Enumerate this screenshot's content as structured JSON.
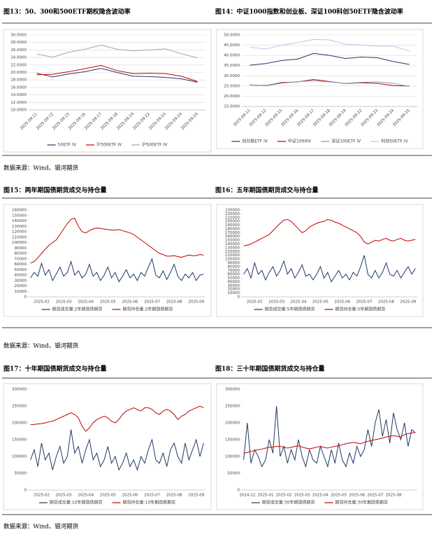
{
  "sources": [
    "数据来源：Wind、银河期货",
    "数据来源：Wind、银河期货",
    "数据来源：Wind、银河期货"
  ],
  "chart_data": [
    {
      "type": "line",
      "title": "图13：50、300和500ETF期权隐含波动率",
      "categories": [
        "2025-09-11",
        "2025-09-12",
        "2025-09-15",
        "2025-09-16",
        "2025-09-17",
        "2025-09-18",
        "2025-09-19",
        "2025-09-22",
        "2025-09-23",
        "2025-09-24",
        "2025-09-25"
      ],
      "x_tick_rotation": -45,
      "grid": true,
      "ylim": [
        10,
        30
      ],
      "yticks": [
        {
          "value": 10,
          "label": "10.0000"
        },
        {
          "value": 12,
          "label": "12.0000"
        },
        {
          "value": 14,
          "label": "14.0000"
        },
        {
          "value": 16,
          "label": "16.0000"
        },
        {
          "value": 18,
          "label": "18.0000"
        },
        {
          "value": 20,
          "label": "20.0000"
        },
        {
          "value": 22,
          "label": "22.0000"
        },
        {
          "value": 24,
          "label": "24.0000"
        },
        {
          "value": 26,
          "label": "26.0000"
        },
        {
          "value": 28,
          "label": "28.0000"
        },
        {
          "value": 30,
          "label": "30.0000"
        }
      ],
      "series": [
        {
          "name": "50ETF IV",
          "color": "#1f3864",
          "values": [
            19.8,
            18.8,
            19.6,
            20.2,
            21.1,
            20.0,
            19.0,
            18.9,
            18.7,
            18.3,
            17.4
          ]
        },
        {
          "name": "沪300ETF IV",
          "color": "#c00000",
          "values": [
            19.4,
            19.5,
            20.2,
            21.0,
            21.9,
            20.5,
            19.7,
            19.8,
            19.7,
            19.0,
            17.6
          ]
        },
        {
          "name": "沪500ETF IV",
          "color": "#a6a6a6",
          "values": [
            24.9,
            24.1,
            25.4,
            26.2,
            27.3,
            26.2,
            25.8,
            26.0,
            26.3,
            25.0,
            23.9
          ]
        }
      ]
    },
    {
      "type": "line",
      "title": "图14：中证1000指数和创业板、深证100科创50ETF隐含波动率",
      "categories": [
        "2025-09-11",
        "2025-09-12",
        "2025-09-15",
        "2025-09-16",
        "2025-09-17",
        "2025-09-18",
        "2025-09-19",
        "2025-09-22",
        "2025-09-23",
        "2025-09-24",
        "2025-09-25"
      ],
      "x_tick_rotation": -45,
      "grid": true,
      "ylim": [
        15,
        50
      ],
      "yticks": [
        {
          "value": 15,
          "label": "15.0000"
        },
        {
          "value": 20,
          "label": "20.0000"
        },
        {
          "value": 25,
          "label": "25.0000"
        },
        {
          "value": 30,
          "label": "30.0000"
        },
        {
          "value": 35,
          "label": "35.0000"
        },
        {
          "value": 40,
          "label": "40.0000"
        },
        {
          "value": 45,
          "label": "45.0000"
        },
        {
          "value": 50,
          "label": "50.0000"
        }
      ],
      "series": [
        {
          "name": "创业板ETF IV",
          "color": "#1f3864",
          "values": [
            35.2,
            36.0,
            37.5,
            38.2,
            41.0,
            40.0,
            38.5,
            39.2,
            38.9,
            37.0,
            35.6
          ]
        },
        {
          "name": "中证1000IV",
          "color": "#c00000",
          "values": [
            25.5,
            25.2,
            26.7,
            27.0,
            28.2,
            27.2,
            26.2,
            26.6,
            26.3,
            25.2,
            25.0
          ]
        },
        {
          "name": "深证100ETF IV",
          "color": "#8497b0",
          "values": [
            25.6,
            25.1,
            26.4,
            27.1,
            27.6,
            27.0,
            26.3,
            26.8,
            27.0,
            26.3,
            24.8
          ]
        },
        {
          "name": "科创50ETF IV",
          "color": "#b4c7e7",
          "values": [
            44.0,
            43.2,
            45.0,
            46.3,
            47.8,
            47.6,
            45.5,
            45.1,
            44.5,
            44.5,
            42.2
          ]
        }
      ]
    },
    {
      "type": "line",
      "title": "图15：两年期国债期货成交与持仓量",
      "categories": [
        null,
        null,
        null,
        "2025-02",
        null,
        null,
        null,
        null,
        null,
        "2025-03",
        null,
        null,
        null,
        null,
        null,
        "2025-04",
        null,
        null,
        null,
        null,
        null,
        "2025-05",
        null,
        null,
        null,
        null,
        null,
        "2025-06",
        null,
        null,
        null,
        null,
        null,
        "2025-07",
        null,
        null,
        null,
        null,
        null,
        "2025-08",
        null,
        null,
        null,
        null,
        null,
        "2025-09",
        null,
        null
      ],
      "grid": false,
      "ylim": [
        0,
        160000
      ],
      "yticks": [
        0,
        10000,
        20000,
        30000,
        40000,
        50000,
        60000,
        70000,
        80000,
        90000,
        100000,
        110000,
        120000,
        130000,
        140000,
        150000,
        160000
      ],
      "series": [
        {
          "name": "期货成交量:2年期国债期货",
          "color": "#1f3864",
          "values": [
            35000,
            45000,
            38000,
            62000,
            40000,
            50000,
            30000,
            42000,
            55000,
            38000,
            45000,
            65000,
            40000,
            48000,
            35000,
            42000,
            60000,
            38000,
            45000,
            30000,
            40000,
            55000,
            35000,
            45000,
            28000,
            38000,
            50000,
            35000,
            42000,
            30000,
            45000,
            38000,
            55000,
            70000,
            40000,
            35000,
            48000,
            32000,
            45000,
            60000,
            38000,
            30000,
            42000,
            35000,
            45000,
            30000,
            40000,
            42000
          ]
        },
        {
          "name": "期货持仓量:2年期国债期货",
          "color": "#c00000",
          "values": [
            62000,
            65000,
            72000,
            80000,
            88000,
            95000,
            100000,
            105000,
            115000,
            125000,
            135000,
            143000,
            145000,
            130000,
            120000,
            118000,
            122000,
            125000,
            127000,
            126000,
            125000,
            124000,
            123000,
            123000,
            124000,
            122000,
            120000,
            118000,
            115000,
            110000,
            105000,
            100000,
            95000,
            90000,
            85000,
            80000,
            78000,
            75000,
            75000,
            76000,
            74000,
            73000,
            75000,
            77000,
            76000,
            76000,
            78000,
            77000
          ]
        }
      ]
    },
    {
      "type": "line",
      "title": "图16：五年期国债期货成交与持仓量",
      "categories": [
        null,
        null,
        null,
        "2025-02",
        null,
        null,
        null,
        null,
        null,
        "2025-03",
        null,
        null,
        null,
        null,
        null,
        "2025-04",
        null,
        null,
        null,
        null,
        null,
        "2025-05",
        null,
        null,
        null,
        null,
        null,
        "2025-06",
        null,
        null,
        null,
        null,
        null,
        "2025-07",
        null,
        null,
        null,
        null,
        null,
        "2025-08",
        null,
        null,
        null,
        null,
        null,
        "2025-09",
        null,
        null
      ],
      "grid": false,
      "ylim": [
        0,
        230000
      ],
      "yticks": [
        0,
        10000,
        20000,
        30000,
        40000,
        50000,
        60000,
        70000,
        80000,
        90000,
        100000,
        110000,
        120000,
        130000,
        140000,
        150000,
        160000,
        170000,
        180000,
        190000,
        200000,
        210000,
        220000,
        230000
      ],
      "series": [
        {
          "name": "期货成交量:5年期国债期货",
          "color": "#1f3864",
          "values": [
            60000,
            75000,
            50000,
            90000,
            60000,
            70000,
            45000,
            65000,
            80000,
            55000,
            70000,
            95000,
            60000,
            75000,
            50000,
            65000,
            85000,
            55000,
            60000,
            45000,
            60000,
            80000,
            50000,
            65000,
            40000,
            55000,
            70000,
            50000,
            60000,
            45000,
            65000,
            55000,
            80000,
            110000,
            60000,
            50000,
            70000,
            50000,
            65000,
            90000,
            60000,
            55000,
            70000,
            50000,
            65000,
            80000,
            60000,
            75000
          ]
        },
        {
          "name": "期货持仓量:5年期国债期货",
          "color": "#c00000",
          "values": [
            135000,
            137000,
            140000,
            145000,
            150000,
            155000,
            160000,
            165000,
            175000,
            185000,
            195000,
            203000,
            205000,
            200000,
            190000,
            180000,
            170000,
            175000,
            185000,
            190000,
            195000,
            198000,
            200000,
            205000,
            203000,
            198000,
            195000,
            190000,
            185000,
            180000,
            175000,
            170000,
            160000,
            145000,
            140000,
            145000,
            150000,
            148000,
            152000,
            155000,
            150000,
            148000,
            152000,
            155000,
            150000,
            148000,
            150000,
            152000
          ]
        }
      ]
    },
    {
      "type": "line",
      "title": "图17：十年期国债期货成交与持仓量",
      "categories": [
        null,
        null,
        null,
        "2025-02",
        null,
        null,
        null,
        null,
        null,
        "2025-03",
        null,
        null,
        null,
        null,
        null,
        "2025-04",
        null,
        null,
        null,
        null,
        null,
        "2025-05",
        null,
        null,
        null,
        null,
        null,
        "2025-06",
        null,
        null,
        null,
        null,
        null,
        "2025-07",
        null,
        null,
        null,
        null,
        null,
        "2025-08",
        null,
        null,
        null,
        null,
        null,
        "2025-09",
        null,
        null
      ],
      "grid": false,
      "ylim": [
        0,
        300000
      ],
      "yticks": [
        0,
        50000,
        100000,
        150000,
        200000,
        250000,
        300000
      ],
      "series": [
        {
          "name": "期货成交量:10年期国债期货",
          "color": "#1f3864",
          "values": [
            90000,
            120000,
            70000,
            140000,
            90000,
            110000,
            60000,
            100000,
            130000,
            80000,
            100000,
            180000,
            110000,
            130000,
            80000,
            120000,
            150000,
            90000,
            110000,
            70000,
            90000,
            130000,
            80000,
            100000,
            60000,
            80000,
            110000,
            70000,
            90000,
            60000,
            100000,
            80000,
            120000,
            150000,
            90000,
            80000,
            110000,
            70000,
            120000,
            140000,
            100000,
            80000,
            140000,
            90000,
            120000,
            150000,
            100000,
            140000
          ]
        },
        {
          "name": "期货持仓量:10年期国债期货",
          "color": "#c00000",
          "values": [
            195000,
            195000,
            197000,
            198000,
            200000,
            203000,
            205000,
            210000,
            215000,
            220000,
            225000,
            230000,
            225000,
            215000,
            190000,
            175000,
            185000,
            200000,
            210000,
            215000,
            220000,
            215000,
            205000,
            200000,
            210000,
            225000,
            235000,
            240000,
            245000,
            240000,
            235000,
            245000,
            245000,
            240000,
            230000,
            225000,
            235000,
            240000,
            235000,
            225000,
            210000,
            220000,
            225000,
            235000,
            240000,
            245000,
            250000,
            245000
          ]
        }
      ]
    },
    {
      "type": "line",
      "title": "图18：三十年期国债期货成交与持仓量",
      "categories": [
        null,
        "2024-12",
        null,
        null,
        null,
        null,
        "2025-01",
        null,
        null,
        null,
        null,
        "2025-02",
        null,
        null,
        null,
        null,
        "2025-03",
        null,
        null,
        null,
        null,
        "2025-04",
        null,
        null,
        null,
        null,
        "2025-05",
        null,
        null,
        null,
        null,
        "2025-06",
        null,
        null,
        null,
        null,
        "2025-07",
        null,
        null,
        null,
        null,
        "2025-08",
        null,
        null,
        null,
        null,
        null,
        null
      ],
      "grid": false,
      "ylim": [
        0,
        300000
      ],
      "yticks": [
        0,
        50000,
        100000,
        150000,
        200000,
        250000,
        300000
      ],
      "series": [
        {
          "name": "期货成交量:30年期国债期货",
          "color": "#1f3864",
          "values": [
            90000,
            200000,
            80000,
            120000,
            100000,
            70000,
            90000,
            150000,
            110000,
            250000,
            100000,
            130000,
            80000,
            120000,
            90000,
            150000,
            100000,
            70000,
            120000,
            90000,
            80000,
            130000,
            100000,
            70000,
            120000,
            80000,
            140000,
            90000,
            70000,
            110000,
            80000,
            130000,
            100000,
            120000,
            180000,
            130000,
            200000,
            240000,
            160000,
            210000,
            140000,
            230000,
            180000,
            150000,
            200000,
            130000,
            180000,
            170000
          ]
        },
        {
          "name": "期货持仓量:30年期国债期货",
          "color": "#c00000",
          "values": [
            110000,
            112000,
            115000,
            118000,
            120000,
            122000,
            125000,
            127000,
            128000,
            130000,
            130000,
            128000,
            125000,
            127000,
            130000,
            132000,
            128000,
            125000,
            123000,
            125000,
            128000,
            130000,
            127000,
            125000,
            128000,
            130000,
            132000,
            135000,
            138000,
            140000,
            142000,
            140000,
            138000,
            142000,
            145000,
            148000,
            150000,
            152000,
            155000,
            158000,
            160000,
            162000,
            160000,
            158000,
            165000,
            168000,
            170000,
            172000
          ]
        }
      ]
    }
  ]
}
